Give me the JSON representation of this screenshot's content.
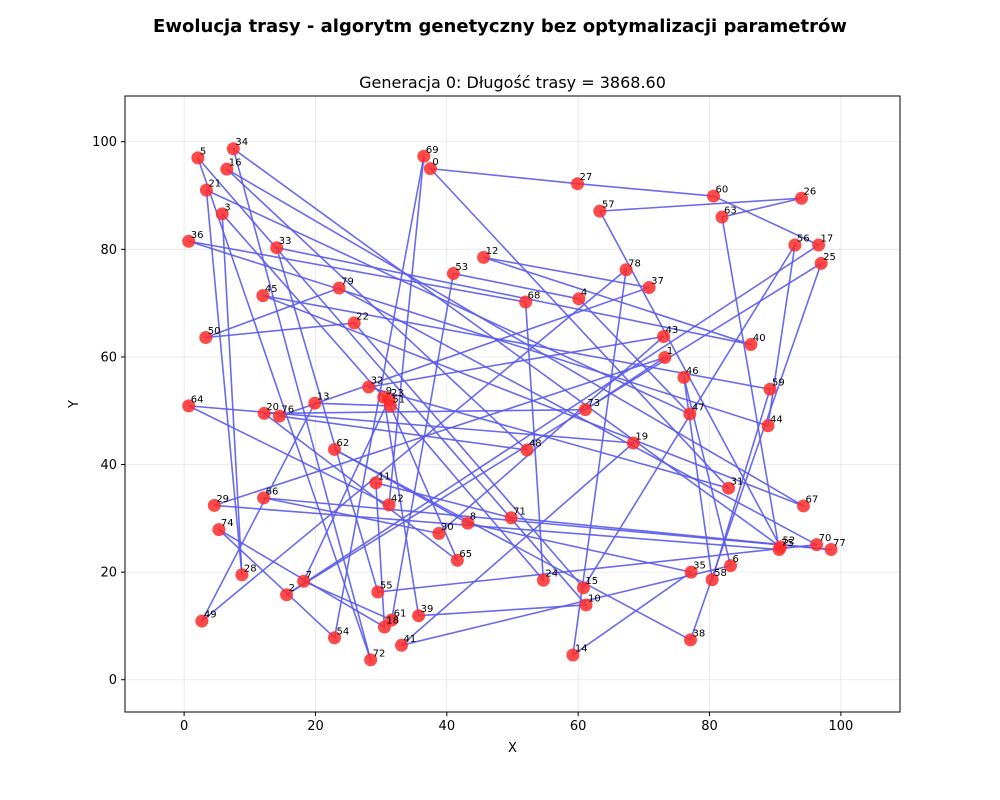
{
  "figure": {
    "suptitle": "Ewolucja trasy - algorytm genetyczny bez optymalizacji parametrów"
  },
  "chart_data": {
    "type": "line",
    "title": "Generacja 0: Długość trasy = 3868.60",
    "xlabel": "X",
    "ylabel": "Y",
    "xlim": [
      -9,
      109
    ],
    "ylim": [
      -6,
      108.5
    ],
    "xticks": [
      0,
      20,
      40,
      60,
      80,
      100
    ],
    "yticks": [
      0,
      20,
      40,
      60,
      80,
      100
    ],
    "grid": true,
    "route_color": "#5a5aeb",
    "point_color": "#ff2a2a",
    "points": [
      {
        "id": "0",
        "x": 37.5,
        "y": 95.0
      },
      {
        "id": "1",
        "x": 73.2,
        "y": 59.9
      },
      {
        "id": "2",
        "x": 15.6,
        "y": 15.8
      },
      {
        "id": "3",
        "x": 5.8,
        "y": 86.6
      },
      {
        "id": "4",
        "x": 60.1,
        "y": 70.8
      },
      {
        "id": "5",
        "x": 2.1,
        "y": 97.0
      },
      {
        "id": "6",
        "x": 83.2,
        "y": 21.2
      },
      {
        "id": "7",
        "x": 18.2,
        "y": 18.3
      },
      {
        "id": "8",
        "x": 43.2,
        "y": 29.1
      },
      {
        "id": "9",
        "x": 30.4,
        "y": 52.5
      },
      {
        "id": "10",
        "x": 61.2,
        "y": 13.9
      },
      {
        "id": "11",
        "x": 29.2,
        "y": 36.6
      },
      {
        "id": "12",
        "x": 45.6,
        "y": 78.5
      },
      {
        "id": "13",
        "x": 19.9,
        "y": 51.4
      },
      {
        "id": "14",
        "x": 59.2,
        "y": 4.6
      },
      {
        "id": "15",
        "x": 60.8,
        "y": 17.1
      },
      {
        "id": "16",
        "x": 6.5,
        "y": 94.9
      },
      {
        "id": "17",
        "x": 96.6,
        "y": 80.8
      },
      {
        "id": "18",
        "x": 30.5,
        "y": 9.8
      },
      {
        "id": "19",
        "x": 68.4,
        "y": 44.0
      },
      {
        "id": "20",
        "x": 12.2,
        "y": 49.5
      },
      {
        "id": "21",
        "x": 3.4,
        "y": 91.0
      },
      {
        "id": "22",
        "x": 25.9,
        "y": 66.3
      },
      {
        "id": "23",
        "x": 31.2,
        "y": 52.1
      },
      {
        "id": "24",
        "x": 54.7,
        "y": 18.5
      },
      {
        "id": "25",
        "x": 97.0,
        "y": 77.4
      },
      {
        "id": "26",
        "x": 94.0,
        "y": 89.5
      },
      {
        "id": "27",
        "x": 59.9,
        "y": 92.2
      },
      {
        "id": "28",
        "x": 8.8,
        "y": 19.5
      },
      {
        "id": "29",
        "x": 4.6,
        "y": 32.4
      },
      {
        "id": "30",
        "x": 38.8,
        "y": 27.2
      },
      {
        "id": "31",
        "x": 82.9,
        "y": 35.6
      },
      {
        "id": "32",
        "x": 28.1,
        "y": 54.4
      },
      {
        "id": "33",
        "x": 14.1,
        "y": 80.3
      },
      {
        "id": "34",
        "x": 7.5,
        "y": 98.7
      },
      {
        "id": "35",
        "x": 77.2,
        "y": 20.0
      },
      {
        "id": "36",
        "x": 0.7,
        "y": 81.5
      },
      {
        "id": "37",
        "x": 70.8,
        "y": 72.9
      },
      {
        "id": "38",
        "x": 77.1,
        "y": 7.4
      },
      {
        "id": "39",
        "x": 35.7,
        "y": 11.9
      },
      {
        "id": "40",
        "x": 86.3,
        "y": 62.3
      },
      {
        "id": "41",
        "x": 33.1,
        "y": 6.4
      },
      {
        "id": "42",
        "x": 31.2,
        "y": 32.5
      },
      {
        "id": "43",
        "x": 73.0,
        "y": 63.8
      },
      {
        "id": "44",
        "x": 88.9,
        "y": 47.2
      },
      {
        "id": "45",
        "x": 12.0,
        "y": 71.4
      },
      {
        "id": "46",
        "x": 76.1,
        "y": 56.2
      },
      {
        "id": "47",
        "x": 77.0,
        "y": 49.4
      },
      {
        "id": "48",
        "x": 52.2,
        "y": 42.7
      },
      {
        "id": "49",
        "x": 2.7,
        "y": 10.9
      },
      {
        "id": "50",
        "x": 3.3,
        "y": 63.6
      },
      {
        "id": "51",
        "x": 31.4,
        "y": 50.9
      },
      {
        "id": "52",
        "x": 90.8,
        "y": 24.7
      },
      {
        "id": "53",
        "x": 41.0,
        "y": 75.5
      },
      {
        "id": "54",
        "x": 22.9,
        "y": 7.8
      },
      {
        "id": "55",
        "x": 29.5,
        "y": 16.3
      },
      {
        "id": "56",
        "x": 93.0,
        "y": 80.8
      },
      {
        "id": "57",
        "x": 63.3,
        "y": 87.1
      },
      {
        "id": "58",
        "x": 80.4,
        "y": 18.6
      },
      {
        "id": "59",
        "x": 89.2,
        "y": 54.0
      },
      {
        "id": "60",
        "x": 80.6,
        "y": 89.9
      },
      {
        "id": "61",
        "x": 31.6,
        "y": 11.1
      },
      {
        "id": "62",
        "x": 22.9,
        "y": 42.8
      },
      {
        "id": "63",
        "x": 81.9,
        "y": 86.0
      },
      {
        "id": "64",
        "x": 0.7,
        "y": 50.9
      },
      {
        "id": "65",
        "x": 41.6,
        "y": 22.2
      },
      {
        "id": "66",
        "x": 12.1,
        "y": 33.8
      },
      {
        "id": "67",
        "x": 94.3,
        "y": 32.3
      },
      {
        "id": "68",
        "x": 52.0,
        "y": 70.2
      },
      {
        "id": "69",
        "x": 36.5,
        "y": 97.3
      },
      {
        "id": "70",
        "x": 96.3,
        "y": 25.1
      },
      {
        "id": "71",
        "x": 49.8,
        "y": 30.1
      },
      {
        "id": "72",
        "x": 28.4,
        "y": 3.7
      },
      {
        "id": "73",
        "x": 61.1,
        "y": 50.2
      },
      {
        "id": "74",
        "x": 5.3,
        "y": 27.9
      },
      {
        "id": "75",
        "x": 90.6,
        "y": 24.2
      },
      {
        "id": "76",
        "x": 14.5,
        "y": 49.0
      },
      {
        "id": "77",
        "x": 98.5,
        "y": 24.2
      },
      {
        "id": "78",
        "x": 67.3,
        "y": 76.2
      },
      {
        "id": "79",
        "x": 23.6,
        "y": 72.8
      }
    ],
    "route": [
      "4",
      "47",
      "21",
      "28",
      "3",
      "9",
      "39",
      "10",
      "5",
      "72",
      "34",
      "52",
      "57",
      "26",
      "63",
      "75",
      "29",
      "1",
      "73",
      "20",
      "65",
      "51",
      "13",
      "49",
      "78",
      "14",
      "35",
      "8",
      "62",
      "38",
      "25",
      "2",
      "17",
      "60",
      "27",
      "0",
      "31",
      "32",
      "43",
      "30",
      "66",
      "77",
      "71",
      "11",
      "18",
      "74",
      "54",
      "69",
      "42",
      "64",
      "19",
      "41",
      "6",
      "46",
      "58",
      "59",
      "45",
      "67",
      "16",
      "48",
      "76",
      "37",
      "12",
      "40",
      "33",
      "55",
      "70",
      "79",
      "50",
      "22",
      "15",
      "56",
      "44",
      "36",
      "68",
      "24",
      "23",
      "7",
      "61",
      "53",
      "4"
    ]
  }
}
